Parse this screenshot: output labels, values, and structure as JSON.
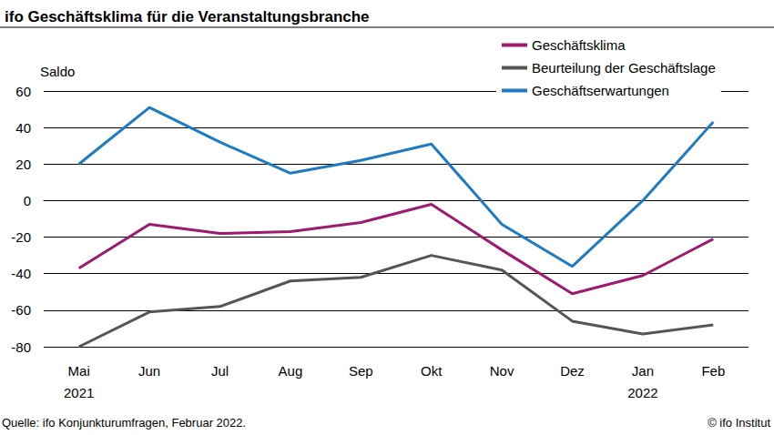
{
  "chart_data": {
    "type": "line",
    "title": "ifo Geschäftsklima für die Veranstaltungsbranche",
    "y_label": "Saldo",
    "annotations": [
      "Quelle: ifo Konjunkturumfragen, Februar 2022.",
      "© ifo Institut"
    ],
    "categories": [
      "Mai\n2021",
      "Jun",
      "Jul",
      "Aug",
      "Sep",
      "Okt",
      "Nov",
      "Dez",
      "Jan\n2022",
      "Feb"
    ],
    "series": [
      {
        "name": "Geschäftsklima",
        "color": "#9e1a6e",
        "values": [
          -37,
          -13,
          -18,
          -17,
          -12,
          -2,
          -27,
          -51,
          -41,
          -21
        ]
      },
      {
        "name": "Beurteilung der Geschäftslage",
        "color": "#555555",
        "values": [
          -80,
          -61,
          -58,
          -44,
          -42,
          -30,
          -38,
          -66,
          -73,
          -68
        ]
      },
      {
        "name": "Geschäftserwartungen",
        "color": "#1f7bc1",
        "values": [
          20,
          51,
          32,
          15,
          22,
          31,
          -13,
          -36,
          0,
          43
        ]
      }
    ],
    "ylim": [
      -80,
      60
    ],
    "yticks": [
      -80,
      -60,
      -40,
      -20,
      0,
      20,
      40,
      60
    ],
    "grid": true,
    "legend": "top-right"
  }
}
